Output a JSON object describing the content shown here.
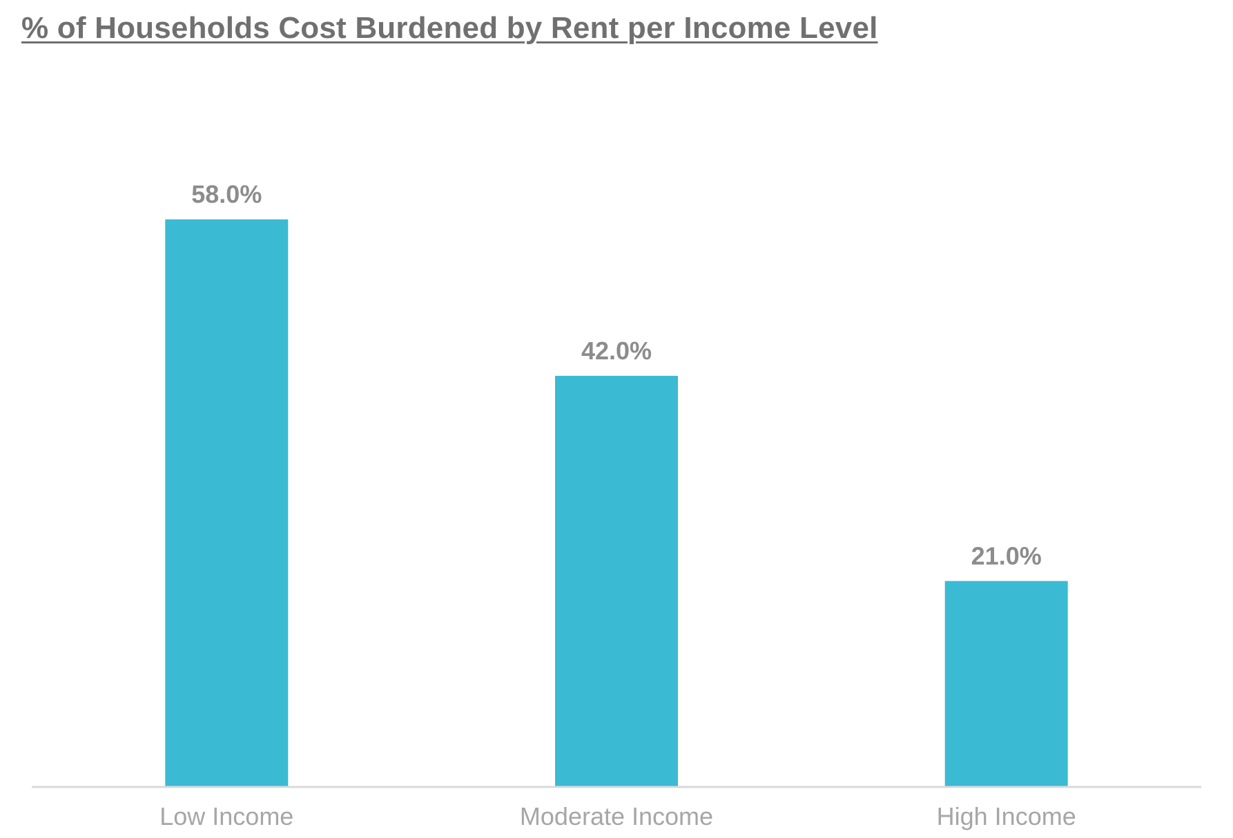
{
  "chart_data": {
    "type": "bar",
    "title": "% of Households Cost Burdened by Rent per Income Level",
    "categories": [
      "Low Income",
      "Moderate Income",
      "High Income"
    ],
    "values": [
      58.0,
      42.0,
      21.0
    ],
    "data_labels": [
      "58.0%",
      "42.0%",
      "21.0%"
    ],
    "xlabel": "",
    "ylabel": "",
    "ylim": [
      0,
      70
    ],
    "grid": false,
    "legend": "none",
    "colors": {
      "bar": "#3bbad3",
      "axis": "#d9d9d9",
      "title": "#707070",
      "data_label": "#8c8c8c",
      "tick_label": "#a6a6a6"
    }
  }
}
